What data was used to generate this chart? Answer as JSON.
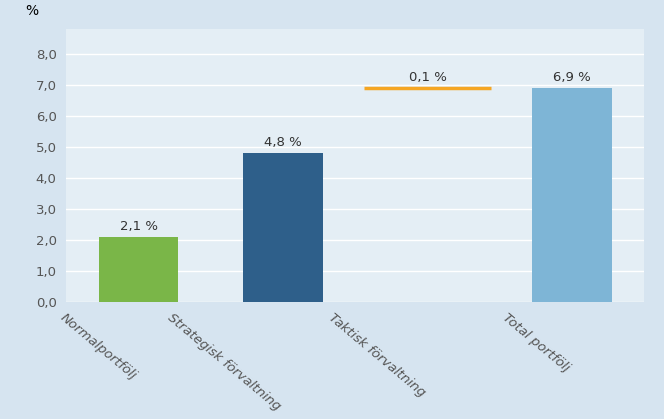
{
  "categories": [
    "Normalportfölj",
    "Strategisk förvaltning",
    "Taktisk förvaltning",
    "Total portfölj"
  ],
  "bar_values": [
    2.1,
    4.8,
    null,
    6.9
  ],
  "bar_colors": [
    "#7AB648",
    "#2E5F8A",
    null,
    "#7EB5D6"
  ],
  "line_category_index": 2,
  "line_value": 6.9,
  "line_color": "#F5A623",
  "line_width": 2.5,
  "labels": [
    "2,1 %",
    "4,8 %",
    "0,1 %",
    "6,9 %"
  ],
  "ylim": [
    0,
    8.8
  ],
  "yticks": [
    0.0,
    1.0,
    2.0,
    3.0,
    4.0,
    5.0,
    6.0,
    7.0,
    8.0
  ],
  "ytick_labels": [
    "0,0",
    "1,0",
    "2,0",
    "3,0",
    "4,0",
    "5,0",
    "6,0",
    "7,0",
    "8,0"
  ],
  "ylabel": "%",
  "background_color": "#D6E4F0",
  "plot_bg_gradient_top": "#F0F5FA",
  "plot_bg_gradient_bottom": "#D6E4F0",
  "bar_width": 0.55,
  "grid_color": "#FFFFFF",
  "tick_label_rotation": -40,
  "label_fontsize": 9.5,
  "axis_fontsize": 9.5,
  "ylabel_fontsize": 10,
  "figsize": [
    6.64,
    4.19
  ],
  "dpi": 100
}
